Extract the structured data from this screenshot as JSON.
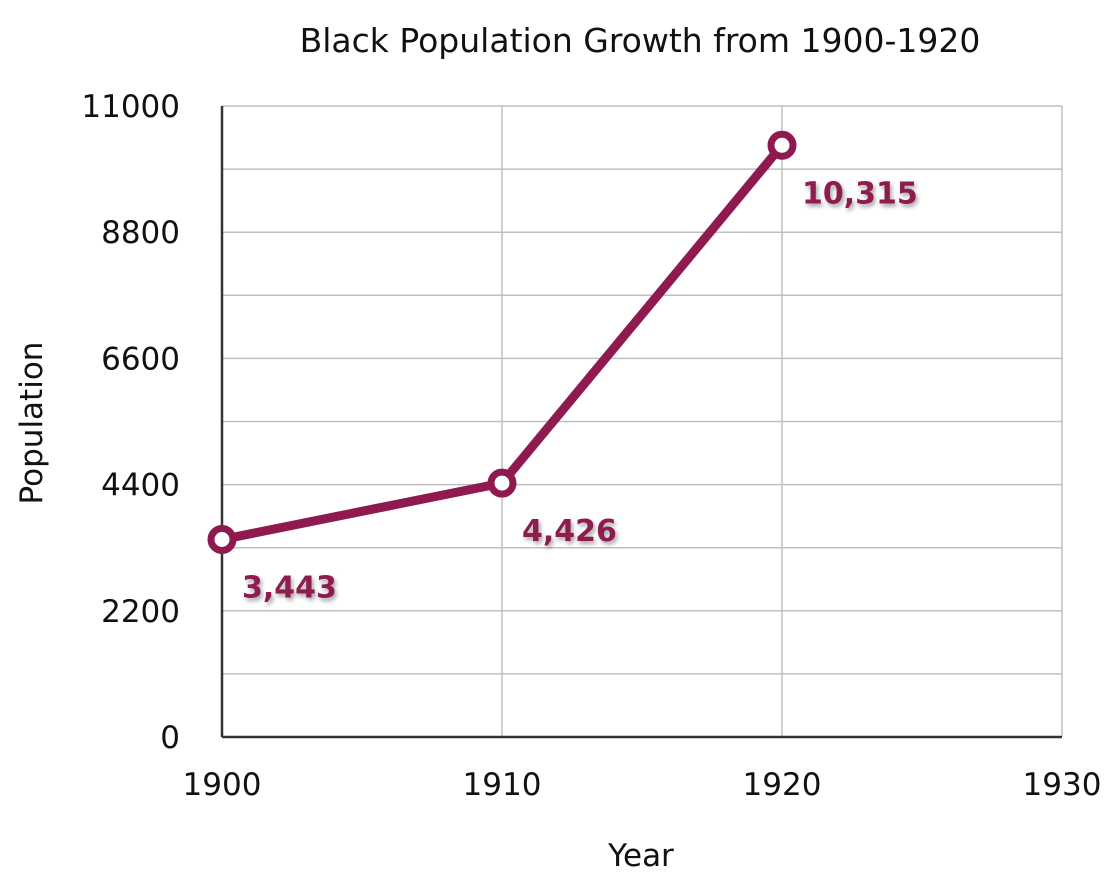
{
  "chart_data": {
    "type": "line",
    "title": "Black Population Growth from 1900-1920",
    "xlabel": "Year",
    "ylabel": "Population",
    "x": [
      1900,
      1910,
      1920
    ],
    "series": [
      {
        "values": [
          3443,
          4426,
          10315
        ]
      }
    ],
    "data_labels": [
      "3,443",
      "4,426",
      "10,315"
    ],
    "xlim": [
      1900,
      1930
    ],
    "ylim": [
      0,
      11000
    ],
    "x_ticks": [
      "1900",
      "1910",
      "1920",
      "1930"
    ],
    "y_ticks": [
      "0",
      "2200",
      "4400",
      "6600",
      "8800",
      "11000"
    ],
    "y_ticks_values": [
      0,
      2200,
      4400,
      6600,
      8800,
      11000
    ],
    "x_ticks_values": [
      1900,
      1910,
      1920,
      1930
    ],
    "grid": true,
    "minor_gridlines_per_interval": 1,
    "line_color": "#8e1a4f",
    "marker_fill": "#ffffff",
    "grid_color": "#bfbfbf",
    "axis_color": "#333333"
  }
}
